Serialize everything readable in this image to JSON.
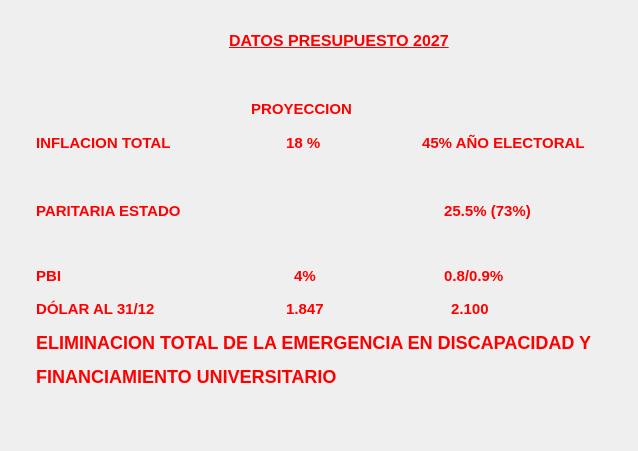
{
  "header": {
    "title": "DATOS PRESUPUESTO 2027"
  },
  "table": {
    "column_header": "PROYECCION",
    "rows": [
      {
        "label": "INFLACION TOTAL",
        "projection": "18 %",
        "other": "45% AÑO ELECTORAL"
      },
      {
        "label": "PARITARIA ESTADO",
        "other": "25.5% (73%)"
      },
      {
        "label": "PBI",
        "projection": "4%",
        "other": "0.8/0.9%"
      },
      {
        "label": "DÓLAR AL 31/12",
        "projection": "1.847",
        "other": "2.100"
      }
    ]
  },
  "footer": {
    "lines": [
      "ELIMINACION TOTAL DE LA EMERGENCIA EN DISCAPACIDAD Y",
      "FINANCIAMIENTO UNIVERSITARIO"
    ]
  }
}
